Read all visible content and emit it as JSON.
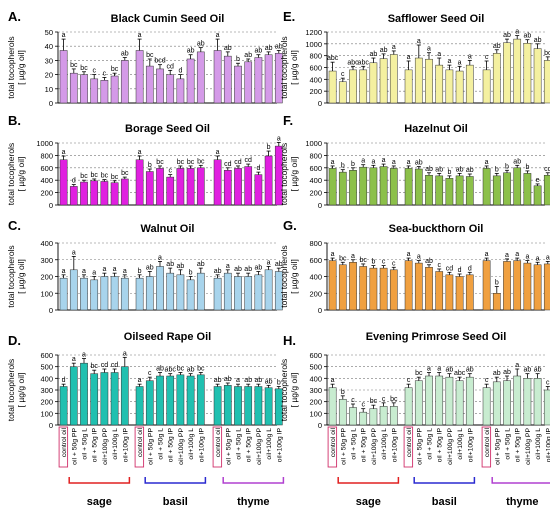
{
  "figure": {
    "ylabel_lines": [
      "total tocopherols",
      "[ µg/g oil]"
    ],
    "treatments": [
      "control oil",
      "oil + 50g PP",
      "oil + 50g L",
      "oil + 50g IP",
      "oil+100g PP",
      "oil+100g L",
      "oil+100g IP"
    ],
    "groups": [
      "sage",
      "basil",
      "thyme"
    ],
    "group_colors": [
      "#e02020",
      "#2a2ad0",
      "#b040d0"
    ],
    "control_box_color": "#d0306a"
  },
  "chart_data": [
    {
      "letter": "A.",
      "title": "Black Cumin Seed Oil",
      "type": "bar",
      "color": "#d49ae8",
      "ylim": [
        0,
        50
      ],
      "yticks": [
        0,
        10,
        20,
        30,
        40,
        50
      ],
      "series": [
        {
          "name": "sage",
          "values": [
            37,
            21,
            20,
            17,
            16,
            19,
            30
          ],
          "errors": [
            8,
            3,
            2,
            3,
            2,
            2,
            2
          ],
          "labels": [
            "a",
            "bc",
            "bc",
            "c",
            "c",
            "bc",
            "ab"
          ]
        },
        {
          "name": "basil",
          "values": [
            37,
            26,
            24,
            20,
            17,
            31,
            36
          ],
          "errors": [
            8,
            5,
            3,
            3,
            3,
            3,
            3
          ],
          "labels": [
            "a",
            "bc",
            "bcd",
            "cd",
            "d",
            "ab",
            "ab"
          ]
        },
        {
          "name": "thyme",
          "values": [
            37,
            33,
            26,
            29,
            32,
            34,
            35
          ],
          "errors": [
            8,
            3,
            2,
            2,
            2,
            2,
            2
          ],
          "labels": [
            "a",
            "ab",
            "b",
            "ab",
            "ab",
            "ab",
            "ab"
          ]
        }
      ]
    },
    {
      "letter": "E.",
      "title": "Safflower Seed Oil",
      "type": "bar",
      "color": "#f4f0a0",
      "ylim": [
        0,
        1200
      ],
      "yticks": [
        0,
        200,
        400,
        600,
        800,
        1000,
        1200
      ],
      "series": [
        {
          "name": "sage",
          "values": [
            540,
            360,
            560,
            560,
            680,
            750,
            820
          ],
          "errors": [
            150,
            60,
            60,
            60,
            80,
            80,
            60
          ],
          "labels": [
            "abc",
            "c",
            "abc",
            "abc",
            "ab",
            "ab",
            "a"
          ]
        },
        {
          "name": "basil",
          "values": [
            560,
            760,
            740,
            640,
            560,
            540,
            640
          ],
          "errors": [
            150,
            220,
            110,
            120,
            80,
            80,
            80
          ],
          "labels": [
            "a",
            "a",
            "a",
            "a",
            "a",
            "a",
            "a"
          ]
        },
        {
          "name": "thyme",
          "values": [
            560,
            840,
            1020,
            1080,
            1010,
            920,
            720
          ],
          "errors": [
            150,
            60,
            60,
            60,
            60,
            80,
            60
          ],
          "labels": [
            "c",
            "ab",
            "ab",
            "a",
            "ab",
            "ab",
            "bc"
          ]
        }
      ]
    },
    {
      "letter": "B.",
      "title": "Borage Seed Oil",
      "type": "bar",
      "color": "#e020e0",
      "ylim": [
        0,
        1000
      ],
      "yticks": [
        0,
        200,
        400,
        600,
        800,
        1000
      ],
      "series": [
        {
          "name": "sage",
          "values": [
            730,
            300,
            370,
            390,
            380,
            360,
            420
          ],
          "errors": [
            60,
            30,
            30,
            30,
            30,
            30,
            30
          ],
          "labels": [
            "a",
            "d",
            "bc",
            "bc",
            "bc",
            "bc",
            "bc"
          ]
        },
        {
          "name": "basil",
          "values": [
            730,
            540,
            590,
            450,
            590,
            590,
            600
          ],
          "errors": [
            60,
            40,
            40,
            40,
            40,
            40,
            40
          ],
          "labels": [
            "a",
            "b",
            "bc",
            "c",
            "bc",
            "bc",
            "bc"
          ]
        },
        {
          "name": "thyme",
          "values": [
            730,
            560,
            590,
            620,
            490,
            790,
            950
          ],
          "errors": [
            60,
            40,
            40,
            40,
            40,
            80,
            60
          ],
          "labels": [
            "a",
            "cd",
            "cd",
            "cd",
            "d",
            "b",
            "a"
          ]
        }
      ]
    },
    {
      "letter": "F.",
      "title": "Hazelnut Oil",
      "type": "bar",
      "color": "#8cc04a",
      "ylim": [
        0,
        1000
      ],
      "yticks": [
        0,
        200,
        400,
        600,
        800,
        1000
      ],
      "series": [
        {
          "name": "sage",
          "values": [
            590,
            530,
            560,
            610,
            600,
            620,
            590
          ],
          "errors": [
            40,
            40,
            40,
            40,
            40,
            40,
            40
          ],
          "labels": [
            "a",
            "b",
            "b",
            "a",
            "a",
            "a",
            "a"
          ]
        },
        {
          "name": "basil",
          "values": [
            590,
            580,
            480,
            470,
            430,
            470,
            460
          ],
          "errors": [
            40,
            40,
            40,
            40,
            40,
            40,
            40
          ],
          "labels": [
            "a",
            "ab",
            "ab",
            "ab",
            "b",
            "ab",
            "ab"
          ]
        },
        {
          "name": "thyme",
          "values": [
            590,
            470,
            520,
            600,
            510,
            310,
            480
          ],
          "errors": [
            40,
            40,
            40,
            40,
            40,
            30,
            40
          ],
          "labels": [
            "a",
            "b",
            "b",
            "ab",
            "b",
            "e",
            "cd"
          ]
        }
      ]
    },
    {
      "letter": "C.",
      "title": "Walnut Oil",
      "type": "bar",
      "color": "#a8d4ec",
      "ylim": [
        0,
        400
      ],
      "yticks": [
        0,
        100,
        200,
        300,
        400
      ],
      "series": [
        {
          "name": "sage",
          "values": [
            190,
            240,
            190,
            180,
            200,
            200,
            190
          ],
          "errors": [
            20,
            80,
            20,
            20,
            20,
            20,
            20
          ],
          "labels": [
            "a",
            "a",
            "a",
            "a",
            "a",
            "a",
            "a"
          ]
        },
        {
          "name": "basil",
          "values": [
            190,
            200,
            260,
            220,
            210,
            180,
            220
          ],
          "errors": [
            20,
            30,
            30,
            30,
            30,
            20,
            30
          ],
          "labels": [
            "b",
            "ab",
            "a",
            "ab",
            "ab",
            "b",
            "ab"
          ]
        },
        {
          "name": "thyme",
          "values": [
            190,
            220,
            200,
            200,
            210,
            240,
            230
          ],
          "errors": [
            20,
            20,
            20,
            20,
            20,
            20,
            20
          ],
          "labels": [
            "ab",
            "a",
            "ab",
            "ab",
            "ab",
            "a",
            "ab"
          ]
        }
      ]
    },
    {
      "letter": "G.",
      "title": "Sea-buckthorn Oil",
      "type": "bar",
      "color": "#f0a040",
      "ylim": [
        0,
        800
      ],
      "yticks": [
        0,
        200,
        400,
        600,
        800
      ],
      "series": [
        {
          "name": "sage",
          "values": [
            590,
            540,
            570,
            520,
            500,
            500,
            480
          ],
          "errors": [
            30,
            30,
            30,
            30,
            30,
            30,
            30
          ],
          "labels": [
            "a",
            "bc",
            "a",
            "bc",
            "b",
            "c",
            "c"
          ]
        },
        {
          "name": "basil",
          "values": [
            590,
            560,
            510,
            460,
            420,
            400,
            420
          ],
          "errors": [
            30,
            30,
            30,
            30,
            30,
            30,
            30
          ],
          "labels": [
            "a",
            "a",
            "ab",
            "c",
            "cd",
            "d",
            "d"
          ]
        },
        {
          "name": "thyme",
          "values": [
            590,
            200,
            580,
            590,
            560,
            540,
            550
          ],
          "errors": [
            30,
            80,
            30,
            30,
            30,
            30,
            30
          ],
          "labels": [
            "a",
            "b",
            "a",
            "a",
            "a",
            "a",
            "a"
          ]
        }
      ]
    },
    {
      "letter": "D.",
      "title": "Oilseed Rape Oil",
      "type": "bar",
      "color": "#20c0b0",
      "ylim": [
        0,
        600
      ],
      "yticks": [
        0,
        100,
        200,
        300,
        400,
        500,
        600
      ],
      "series": [
        {
          "name": "sage",
          "values": [
            330,
            500,
            530,
            440,
            450,
            450,
            500
          ],
          "errors": [
            20,
            30,
            40,
            30,
            30,
            30,
            80
          ],
          "labels": [
            "d",
            "a",
            "a",
            "bc",
            "cd",
            "cd",
            "a"
          ]
        },
        {
          "name": "basil",
          "values": [
            330,
            380,
            420,
            420,
            430,
            420,
            430
          ],
          "errors": [
            20,
            30,
            30,
            20,
            20,
            20,
            20
          ],
          "labels": [
            "a",
            "c",
            "ab",
            "abc",
            "bc",
            "ab",
            "bc"
          ]
        },
        {
          "name": "thyme",
          "values": [
            330,
            340,
            330,
            330,
            330,
            320,
            310
          ],
          "errors": [
            20,
            20,
            20,
            20,
            20,
            20,
            20
          ],
          "labels": [
            "ab",
            "ab",
            "a",
            "ab",
            "ab",
            "ab",
            "b"
          ]
        }
      ]
    },
    {
      "letter": "H.",
      "title": "Evening Primrose Seed Oil",
      "type": "bar",
      "color": "#c8ecd0",
      "ylim": [
        0,
        600
      ],
      "yticks": [
        0,
        100,
        200,
        300,
        400,
        500,
        600
      ],
      "series": [
        {
          "name": "sage",
          "values": [
            320,
            220,
            150,
            110,
            140,
            160,
            160
          ],
          "errors": [
            30,
            30,
            30,
            30,
            30,
            30,
            30
          ],
          "labels": [
            "a",
            "b",
            "c",
            "c",
            "bc",
            "c",
            "bc"
          ]
        },
        {
          "name": "basil",
          "values": [
            320,
            380,
            420,
            420,
            410,
            380,
            410
          ],
          "errors": [
            30,
            30,
            30,
            30,
            30,
            30,
            30
          ],
          "labels": [
            "c",
            "bc",
            "a",
            "a",
            "ab",
            "abc",
            "ab"
          ]
        },
        {
          "name": "thyme",
          "values": [
            320,
            370,
            380,
            420,
            400,
            400,
            300
          ],
          "errors": [
            30,
            40,
            40,
            60,
            40,
            40,
            30
          ],
          "labels": [
            "c",
            "ab",
            "ab",
            "a",
            "ab",
            "ab",
            "c"
          ]
        }
      ]
    }
  ]
}
